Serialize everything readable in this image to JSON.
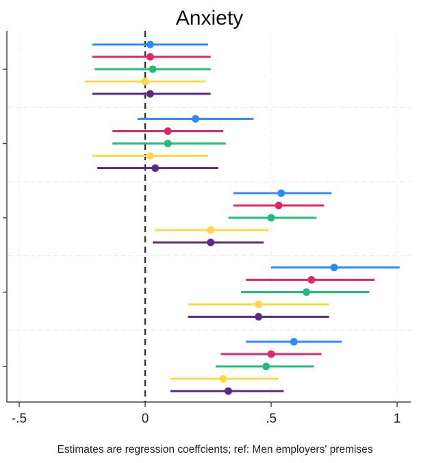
{
  "chart_data": {
    "type": "scatter",
    "subtype": "coefficient-plot",
    "title": "Anxiety",
    "note": "Estimates are regression coeffcients; ref: Men employers' premises",
    "xlim": [
      -0.55,
      1.05
    ],
    "x_ticks": [
      -0.5,
      0,
      0.5,
      1
    ],
    "x_tick_labels": [
      "-.5",
      "0",
      ".5",
      "1"
    ],
    "reference_line": {
      "x": 0,
      "style": "dashed"
    },
    "grid": true,
    "orientation": "horizontal",
    "groups": 5,
    "series": [
      {
        "color": "#2b8cff",
        "estimates": [
          0.02,
          0.2,
          0.54,
          0.75,
          0.59
        ],
        "ci_low": [
          -0.21,
          -0.03,
          0.35,
          0.5,
          0.4
        ],
        "ci_high": [
          0.25,
          0.43,
          0.74,
          1.01,
          0.78
        ]
      },
      {
        "color": "#e0266b",
        "estimates": [
          0.02,
          0.09,
          0.53,
          0.66,
          0.5
        ],
        "ci_low": [
          -0.21,
          -0.13,
          0.35,
          0.4,
          0.3
        ],
        "ci_high": [
          0.26,
          0.31,
          0.71,
          0.91,
          0.7
        ]
      },
      {
        "color": "#1fbf7a",
        "estimates": [
          0.03,
          0.09,
          0.5,
          0.64,
          0.48
        ],
        "ci_low": [
          -0.2,
          -0.13,
          0.33,
          0.38,
          0.28
        ],
        "ci_high": [
          0.26,
          0.32,
          0.68,
          0.89,
          0.67
        ]
      },
      {
        "color": "#ffd84a",
        "estimates": [
          0.0,
          0.02,
          0.26,
          0.45,
          0.31
        ],
        "ci_low": [
          -0.24,
          -0.21,
          0.04,
          0.17,
          0.1
        ],
        "ci_high": [
          0.24,
          0.25,
          0.49,
          0.73,
          0.53
        ]
      },
      {
        "color": "#5b2a86",
        "estimates": [
          0.02,
          0.04,
          0.26,
          0.45,
          0.33
        ],
        "ci_low": [
          -0.21,
          -0.19,
          0.03,
          0.17,
          0.1
        ],
        "ci_high": [
          0.26,
          0.29,
          0.47,
          0.73,
          0.55
        ]
      }
    ]
  }
}
